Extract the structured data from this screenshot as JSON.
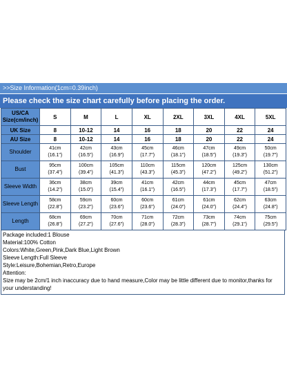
{
  "info_title": ">>Size Information(1cm=0.39inch)",
  "notice": "Please check the size chart carefully before placing the order.",
  "table": {
    "header_label": "US/CA Size(cm/inch)",
    "sizes": [
      "S",
      "M",
      "L",
      "XL",
      "2XL",
      "3XL",
      "4XL",
      "5XL"
    ],
    "uk_label": "UK Size",
    "uk_sizes": [
      "8",
      "10-12",
      "14",
      "16",
      "18",
      "20",
      "22",
      "24"
    ],
    "au_label": "AU Size",
    "au_sizes": [
      "8",
      "10-12",
      "14",
      "16",
      "18",
      "20",
      "22",
      "24"
    ],
    "rows": [
      {
        "label": "Shoulder",
        "cm": [
          "41cm",
          "42cm",
          "43cm",
          "45cm",
          "46cm",
          "47cm",
          "49cm",
          "50cm"
        ],
        "inch": [
          "(16.1\")",
          "(16.5\")",
          "(16.9\")",
          "(17.7\")",
          "(18.1\")",
          "(18.5\")",
          "(19.3\")",
          "(19.7\")"
        ]
      },
      {
        "label": "Bust",
        "cm": [
          "95cm",
          "100cm",
          "105cm",
          "110cm",
          "115cm",
          "120cm",
          "125cm",
          "130cm"
        ],
        "inch": [
          "(37.4\")",
          "(39.4\")",
          "(41.3\")",
          "(43.3\")",
          "(45.3\")",
          "(47.2\")",
          "(49.2\")",
          "(51.2\")"
        ]
      },
      {
        "label": "Sleeve Width",
        "cm": [
          "36cm",
          "38cm",
          "39cm",
          "41cm",
          "42cm",
          "44cm",
          "45cm",
          "47cm"
        ],
        "inch": [
          "(14.2\")",
          "(15.0\")",
          "(15.4\")",
          "(16.1\")",
          "(16.5\")",
          "(17.3\")",
          "(17.7\")",
          "(18.5\")"
        ]
      },
      {
        "label": "Sleeve Length",
        "cm": [
          "58cm",
          "59cm",
          "60cm",
          "60cm",
          "61cm",
          "61cm",
          "62cm",
          "63cm"
        ],
        "inch": [
          "(22.8\")",
          "(23.2\")",
          "(23.6\")",
          "(23.6\")",
          "(24.0\")",
          "(24.0\")",
          "(24.4\")",
          "(24.8\")"
        ]
      },
      {
        "label": "Length",
        "cm": [
          "68cm",
          "69cm",
          "70cm",
          "71cm",
          "72cm",
          "73cm",
          "74cm",
          "75cm"
        ],
        "inch": [
          "(26.8\")",
          "(27.2\")",
          "(27.6\")",
          "(28.0\")",
          "(28.3\")",
          "(28.7\")",
          "(29.1\")",
          "(29.5\")"
        ]
      }
    ]
  },
  "notes": [
    "Package included:1 Blouse",
    "Material:100% Cotton",
    "Colors:White,Green,Pink,Dark Blue,Light Brown",
    "Sleeve Length:Full Sleeve",
    "Style:Leisure,Bohemian,Retro,Europe",
    "Attention:",
    "Size may be 2cm/1 inch inaccuracy due to hand measure,Color may be little different due to monitor,thanks for your understanding!"
  ],
  "colors": {
    "banner_light": "#5b8fd0",
    "banner_dark": "#3f73bf",
    "grid_border": "#3d5e8a"
  }
}
